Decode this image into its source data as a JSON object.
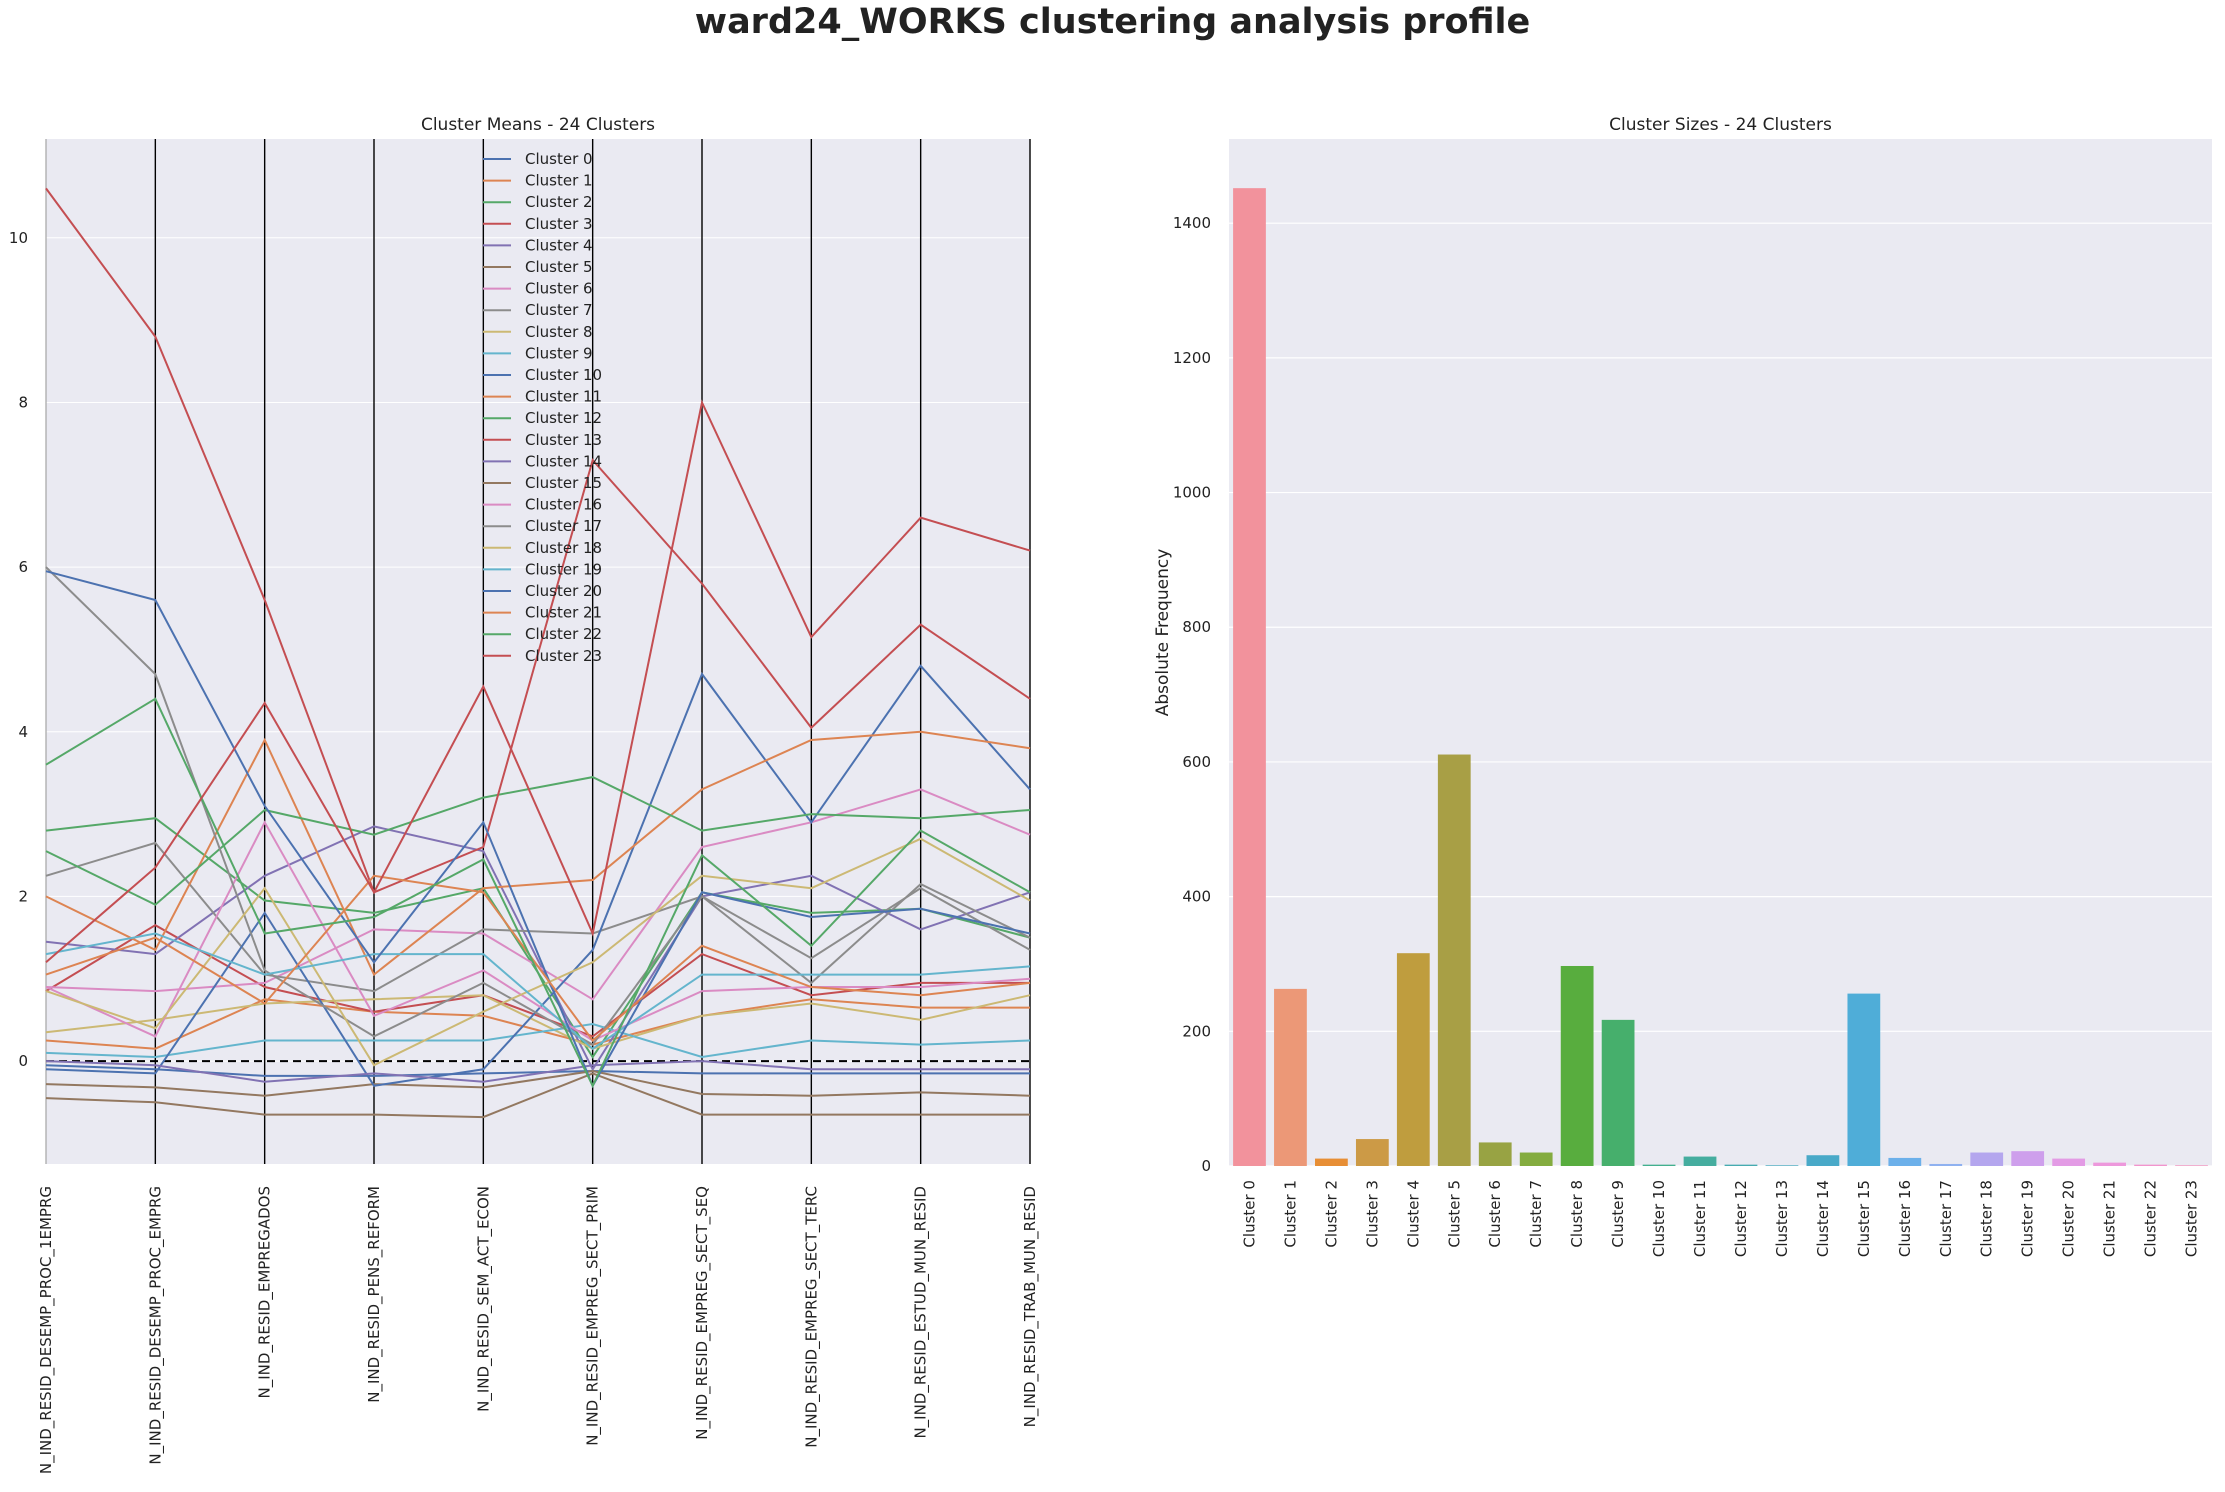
{
  "figure": {
    "title": "ward24_WORKS clustering analysis profile"
  },
  "chart_data": [
    {
      "type": "line",
      "title": "Cluster Means - 24 Clusters",
      "x": [
        "N_IND_RESID_DESEMP_PROC_1EMPRG",
        "N_IND_RESID_DESEMP_PROC_EMPRG",
        "N_IND_RESID_EMPREGADOS",
        "N_IND_RESID_PENS_REFORM",
        "N_IND_RESID_SEM_ACT_ECON",
        "N_IND_RESID_EMPREG_SECT_PRIM",
        "N_IND_RESID_EMPREG_SECT_SEQ",
        "N_IND_RESID_EMPREG_SECT_TERC",
        "N_IND_RESID_ESTUD_MUN_RESID",
        "N_IND_RESID_TRAB_MUN_RESID"
      ],
      "ylim": [
        -1.25,
        11.2
      ],
      "yticks": [
        0,
        2,
        4,
        6,
        8,
        10
      ],
      "reference_line": 0,
      "legend_position": "upper-center",
      "series": [
        {
          "name": "Cluster 0",
          "color": "#4c72b0",
          "values": [
            -0.05,
            -0.1,
            -0.18,
            -0.18,
            -0.15,
            -0.12,
            -0.15,
            -0.15,
            -0.15,
            -0.15
          ]
        },
        {
          "name": "Cluster 1",
          "color": "#dd8452",
          "values": [
            0.25,
            0.15,
            0.75,
            0.6,
            0.55,
            0.2,
            0.55,
            0.75,
            0.65,
            0.65
          ]
        },
        {
          "name": "Cluster 2",
          "color": "#55a868",
          "values": [
            2.8,
            2.95,
            1.95,
            1.8,
            2.1,
            0.05,
            2.05,
            1.8,
            1.85,
            1.5
          ]
        },
        {
          "name": "Cluster 3",
          "color": "#c44e52",
          "values": [
            0.85,
            1.65,
            0.9,
            0.6,
            0.8,
            0.3,
            1.3,
            0.8,
            0.95,
            0.95
          ]
        },
        {
          "name": "Cluster 4",
          "color": "#8172b3",
          "values": [
            1.45,
            1.3,
            2.25,
            2.85,
            2.55,
            -0.1,
            2.0,
            2.25,
            1.6,
            2.05
          ]
        },
        {
          "name": "Cluster 5",
          "color": "#937860",
          "values": [
            -0.28,
            -0.32,
            -0.42,
            -0.28,
            -0.32,
            -0.12,
            -0.4,
            -0.42,
            -0.38,
            -0.42
          ]
        },
        {
          "name": "Cluster 6",
          "color": "#da8bc3",
          "values": [
            0.9,
            0.85,
            0.95,
            1.6,
            1.55,
            0.75,
            2.6,
            2.9,
            3.3,
            2.75
          ]
        },
        {
          "name": "Cluster 7",
          "color": "#8c8c8c",
          "values": [
            2.25,
            2.65,
            1.05,
            0.85,
            1.6,
            1.55,
            2.0,
            1.25,
            2.1,
            1.35
          ]
        },
        {
          "name": "Cluster 8",
          "color": "#ccb974",
          "values": [
            0.35,
            0.5,
            0.7,
            0.75,
            0.8,
            0.15,
            0.55,
            0.7,
            0.5,
            0.8
          ]
        },
        {
          "name": "Cluster 9",
          "color": "#64b5cd",
          "values": [
            0.1,
            0.05,
            0.25,
            0.25,
            0.25,
            0.45,
            0.05,
            0.25,
            0.2,
            0.25
          ]
        },
        {
          "name": "Cluster 10",
          "color": "#4c72b0",
          "values": [
            -0.1,
            -0.15,
            1.8,
            -0.3,
            -0.1,
            1.35,
            4.7,
            2.9,
            4.8,
            3.3
          ]
        },
        {
          "name": "Cluster 11",
          "color": "#dd8452",
          "values": [
            2.0,
            1.35,
            3.9,
            1.05,
            2.1,
            2.2,
            3.3,
            3.9,
            4.0,
            3.8
          ]
        },
        {
          "name": "Cluster 12",
          "color": "#55a868",
          "values": [
            2.55,
            1.9,
            3.05,
            2.75,
            3.2,
            3.45,
            2.8,
            3.0,
            2.95,
            3.05
          ]
        },
        {
          "name": "Cluster 13",
          "color": "#c44e52",
          "values": [
            10.6,
            8.8,
            5.6,
            2.05,
            2.6,
            7.3,
            5.8,
            4.05,
            5.3,
            4.4
          ]
        },
        {
          "name": "Cluster 14",
          "color": "#8172b3",
          "values": [
            0.0,
            -0.05,
            -0.25,
            -0.15,
            -0.25,
            -0.05,
            0.0,
            -0.1,
            -0.1,
            -0.1
          ]
        },
        {
          "name": "Cluster 15",
          "color": "#937860",
          "values": [
            -0.45,
            -0.5,
            -0.65,
            -0.65,
            -0.68,
            -0.15,
            -0.65,
            -0.65,
            -0.65,
            -0.65
          ]
        },
        {
          "name": "Cluster 16",
          "color": "#da8bc3",
          "values": [
            0.9,
            0.3,
            2.9,
            0.55,
            1.1,
            0.25,
            0.85,
            0.9,
            0.9,
            1.0
          ]
        },
        {
          "name": "Cluster 17",
          "color": "#8c8c8c",
          "values": [
            6.0,
            4.7,
            1.1,
            0.3,
            0.95,
            0.2,
            2.0,
            0.95,
            2.15,
            1.5
          ]
        },
        {
          "name": "Cluster 18",
          "color": "#ccb974",
          "values": [
            0.85,
            0.4,
            2.1,
            -0.05,
            0.6,
            1.2,
            2.25,
            2.1,
            2.7,
            1.95
          ]
        },
        {
          "name": "Cluster 19",
          "color": "#64b5cd",
          "values": [
            1.3,
            1.55,
            1.05,
            1.3,
            1.3,
            0.15,
            1.05,
            1.05,
            1.05,
            1.15
          ]
        },
        {
          "name": "Cluster 20",
          "color": "#4c72b0",
          "values": [
            5.95,
            5.6,
            3.1,
            1.2,
            2.9,
            -0.3,
            2.05,
            1.75,
            1.85,
            1.55
          ]
        },
        {
          "name": "Cluster 21",
          "color": "#dd8452",
          "values": [
            1.05,
            1.5,
            0.7,
            2.25,
            2.05,
            0.25,
            1.4,
            0.9,
            0.8,
            0.95
          ]
        },
        {
          "name": "Cluster 22",
          "color": "#55a868",
          "values": [
            3.6,
            4.4,
            1.55,
            1.75,
            2.45,
            -0.3,
            2.5,
            1.4,
            2.8,
            2.05
          ]
        },
        {
          "name": "Cluster 23",
          "color": "#c44e52",
          "values": [
            1.2,
            2.35,
            4.35,
            2.05,
            4.55,
            1.55,
            8.0,
            5.15,
            6.6,
            6.2
          ]
        }
      ]
    },
    {
      "type": "bar",
      "title": "Cluster Sizes - 24 Clusters",
      "ylabel": "Absolute Frequency",
      "ylim": [
        0,
        1525
      ],
      "yticks": [
        0,
        200,
        400,
        600,
        800,
        1000,
        1200,
        1400
      ],
      "categories": [
        "Cluster 0",
        "Cluster 1",
        "Cluster 2",
        "Cluster 3",
        "Cluster 4",
        "Cluster 5",
        "Cluster 6",
        "Cluster 7",
        "Cluster 8",
        "Cluster 9",
        "Cluster 10",
        "Cluster 11",
        "Cluster 12",
        "Cluster 13",
        "Cluster 14",
        "Cluster 15",
        "Cluster 16",
        "Cluster 17",
        "Cluster 18",
        "Cluster 19",
        "Cluster 20",
        "Cluster 21",
        "Cluster 22",
        "Cluster 23"
      ],
      "values": [
        1452,
        263,
        11,
        40,
        316,
        611,
        35,
        20,
        297,
        217,
        2,
        14,
        2,
        1,
        16,
        256,
        12,
        3,
        20,
        22,
        11,
        5,
        2,
        1
      ],
      "colors": [
        "#f2929c",
        "#ec9877",
        "#e78e35",
        "#cc9a46",
        "#bf9d3e",
        "#a89f45",
        "#98a343",
        "#84ac3f",
        "#58ad3e",
        "#46af6c",
        "#43b08f",
        "#45ad9f",
        "#46abb0",
        "#47aabf",
        "#49a9c8",
        "#4fadd8",
        "#6cb0ea",
        "#8fb1f0",
        "#b4a6ee",
        "#ce9fec",
        "#e39be5",
        "#ed98dc",
        "#f294cd",
        "#f293bd"
      ]
    }
  ]
}
